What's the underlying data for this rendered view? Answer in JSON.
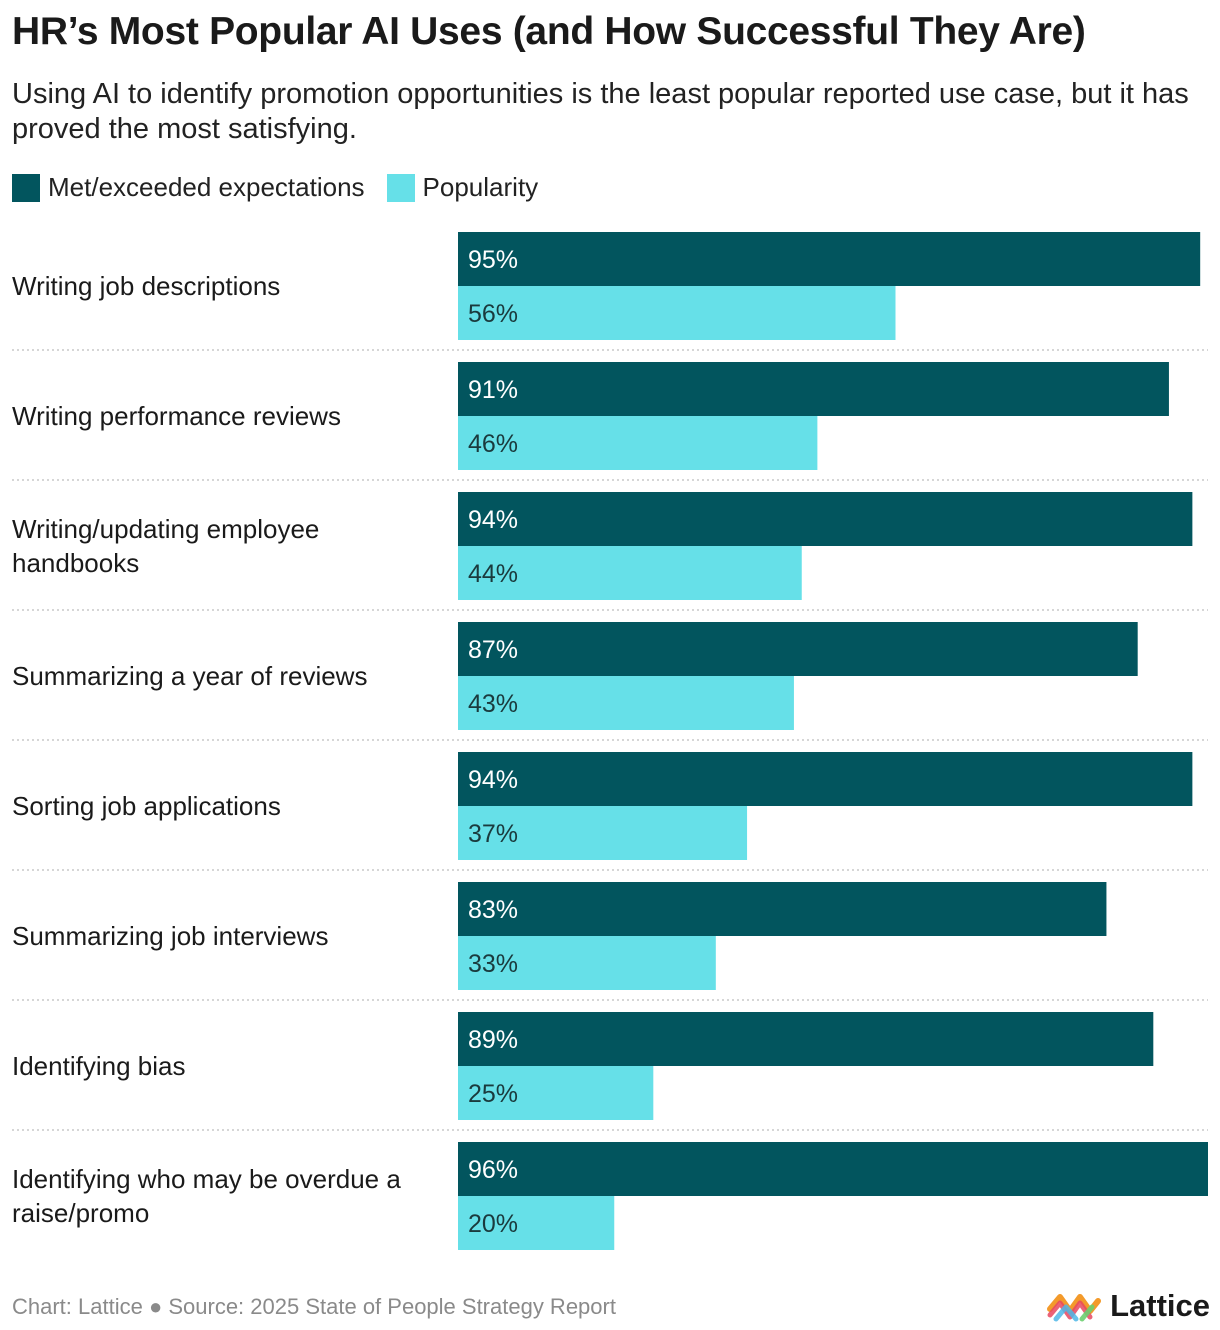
{
  "title": "HR’s Most Popular AI Uses (and How Successful They Are)",
  "subtitle": "Using AI to identify promotion opportunities is the least popular reported use case, but it has proved the most satisfying.",
  "legend": [
    {
      "label": "Met/exceeded expectations",
      "color": "#02555e"
    },
    {
      "label": "Popularity",
      "color": "#66e0e8"
    }
  ],
  "footer": "Chart: Lattice ● Source: 2025 State of People Strategy Report",
  "logo": {
    "text": "Lattice",
    "icon": "lattice-logo-icon"
  },
  "chart_data": {
    "type": "bar",
    "orientation": "horizontal",
    "categories": [
      "Writing job descriptions",
      "Writing performance reviews",
      "Writing/updating employee handbooks",
      "Summarizing a year of reviews",
      "Sorting job applications",
      "Summarizing job interviews",
      "Identifying bias",
      "Identifying who may be overdue a raise/promo"
    ],
    "series": [
      {
        "name": "Met/exceeded expectations",
        "color": "#02555e",
        "label_color": "#ffffff",
        "values": [
          95,
          91,
          94,
          87,
          94,
          83,
          89,
          96
        ],
        "labels": [
          "95%",
          "91%",
          "94%",
          "87%",
          "94%",
          "83%",
          "89%",
          "96%"
        ]
      },
      {
        "name": "Popularity",
        "color": "#66e0e8",
        "label_color": "#1a3a3d",
        "values": [
          56,
          46,
          44,
          43,
          37,
          33,
          25,
          20
        ],
        "labels": [
          "56%",
          "46%",
          "44%",
          "43%",
          "37%",
          "33%",
          "25%",
          "20%"
        ]
      }
    ],
    "xlim": [
      0,
      96
    ],
    "grid": false,
    "legend_position": "top-left"
  }
}
